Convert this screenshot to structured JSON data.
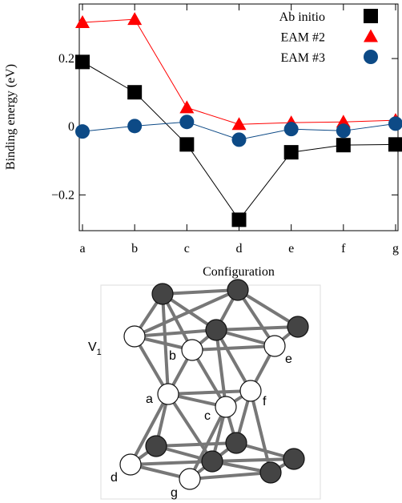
{
  "chart_data": {
    "type": "line",
    "ylabel": "Binding energy  (eV)",
    "xlabel": "Configuration",
    "categories": [
      "a",
      "b",
      "c",
      "d",
      "e",
      "f",
      "g"
    ],
    "series": [
      {
        "name": "Ab initio",
        "color": "#000000",
        "marker": "square",
        "values": [
          0.19,
          0.101,
          -0.052,
          -0.273,
          -0.075,
          -0.054,
          -0.052
        ]
      },
      {
        "name": "EAM #2",
        "color": "#ff0000",
        "marker": "triangle",
        "values": [
          0.306,
          0.315,
          0.056,
          0.007,
          0.012,
          0.014,
          0.019
        ]
      },
      {
        "name": "EAM #3",
        "color": "#0d4a86",
        "marker": "circle",
        "values": [
          -0.014,
          0.002,
          0.014,
          -0.038,
          -0.007,
          -0.012,
          0.009
        ]
      }
    ],
    "ylim": [
      -0.305,
      0.36
    ],
    "yticks": [
      {
        "value": -0.2,
        "label": "−0.2"
      },
      0,
      0.2
    ],
    "legend": "upper right"
  },
  "diagram": {
    "labels": {
      "v1": {
        "main": "V",
        "sub": "1"
      },
      "a": "a",
      "b": "b",
      "c": "c",
      "d": "d",
      "e": "e",
      "f": "f",
      "g": "g"
    }
  }
}
